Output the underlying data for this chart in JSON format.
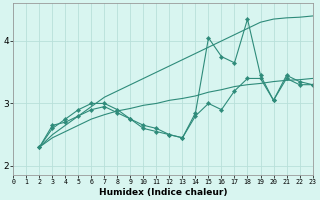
{
  "xlabel": "Humidex (Indice chaleur)",
  "x": [
    2,
    3,
    4,
    5,
    6,
    7,
    8,
    9,
    10,
    11,
    12,
    13,
    14,
    15,
    16,
    17,
    18,
    19,
    20,
    21,
    22,
    23
  ],
  "line_spiky1": [
    2.3,
    2.6,
    2.75,
    2.9,
    3.0,
    3.0,
    2.9,
    2.75,
    2.6,
    2.55,
    2.5,
    2.45,
    2.85,
    4.05,
    3.75,
    3.65,
    4.35,
    3.45,
    3.05,
    3.45,
    3.35,
    3.3
  ],
  "line_spiky2": [
    2.3,
    2.65,
    2.7,
    2.8,
    2.9,
    2.95,
    2.85,
    2.75,
    2.65,
    2.6,
    2.5,
    2.45,
    2.8,
    3.0,
    2.9,
    3.2,
    3.4,
    3.4,
    3.05,
    3.4,
    3.3,
    3.3
  ],
  "line_upper_trend": [
    2.3,
    2.5,
    2.65,
    2.8,
    2.95,
    3.1,
    3.2,
    3.3,
    3.4,
    3.5,
    3.6,
    3.7,
    3.8,
    3.9,
    4.0,
    4.1,
    4.2,
    4.3,
    4.35,
    4.37,
    4.38,
    4.4
  ],
  "line_lower_trend": [
    2.3,
    2.45,
    2.55,
    2.65,
    2.75,
    2.82,
    2.88,
    2.92,
    2.97,
    3.0,
    3.05,
    3.08,
    3.12,
    3.18,
    3.22,
    3.27,
    3.3,
    3.32,
    3.35,
    3.37,
    3.38,
    3.4
  ],
  "color": "#2e8b7a",
  "bg_color": "#d8f5f0",
  "grid_color": "#b8e0da",
  "ylim": [
    1.85,
    4.6
  ],
  "xlim": [
    0,
    23
  ],
  "yticks": [
    2,
    3,
    4
  ],
  "xticks": [
    0,
    1,
    2,
    3,
    4,
    5,
    6,
    7,
    8,
    9,
    10,
    11,
    12,
    13,
    14,
    15,
    16,
    17,
    18,
    19,
    20,
    21,
    22,
    23
  ]
}
